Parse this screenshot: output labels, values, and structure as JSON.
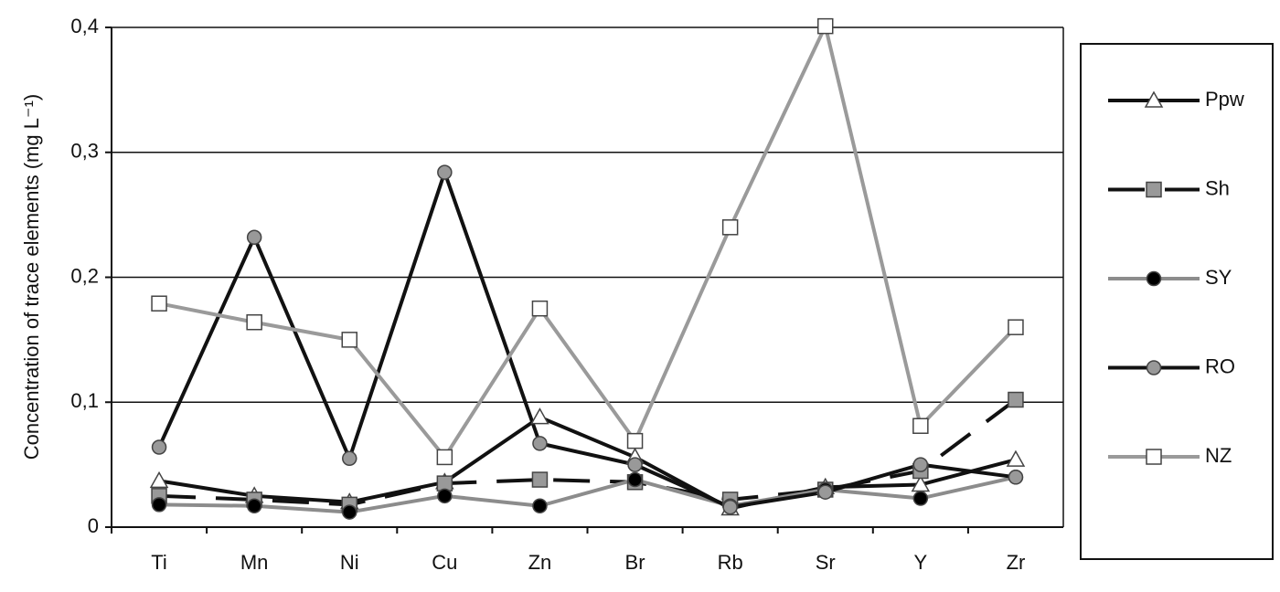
{
  "chart_data": {
    "type": "line",
    "y_label": "Concentration of trace elements (mg L⁻¹)",
    "categories": [
      "Ti",
      "Mn",
      "Ni",
      "Cu",
      "Zn",
      "Br",
      "Rb",
      "Sr",
      "Y",
      "Zr"
    ],
    "ylim": [
      0,
      0.4
    ],
    "yticks": [
      0,
      {
        "value": 0.1,
        "label": "0,1"
      },
      {
        "value": 0.2,
        "label": "0,2"
      },
      {
        "value": 0.3,
        "label": "0,3"
      },
      {
        "value": 0.4,
        "label": "0,4"
      }
    ],
    "grid": true,
    "legend": "right",
    "series": [
      {
        "name": "Ppw",
        "color": "#111111",
        "marker": "triangle",
        "marker_fill": "#ffffff",
        "dashed": false,
        "values": [
          0.037,
          0.025,
          0.02,
          0.036,
          0.088,
          0.056,
          0.015,
          0.032,
          0.034,
          0.054
        ]
      },
      {
        "name": "Sh",
        "color": "#111111",
        "marker": "square",
        "marker_fill": "#999999",
        "dashed": true,
        "values": [
          0.025,
          0.022,
          0.018,
          0.035,
          0.038,
          0.036,
          0.022,
          0.03,
          0.045,
          0.102
        ]
      },
      {
        "name": "SY",
        "color": "#8c8c8c",
        "marker": "circle",
        "marker_fill": "#000000",
        "dashed": false,
        "values": [
          0.018,
          0.017,
          0.012,
          0.025,
          0.017,
          0.038,
          0.017,
          0.03,
          0.023,
          0.04
        ]
      },
      {
        "name": "RO",
        "color": "#111111",
        "marker": "circle",
        "marker_fill": "#999999",
        "dashed": false,
        "values": [
          0.064,
          0.232,
          0.055,
          0.284,
          0.067,
          0.05,
          0.016,
          0.028,
          0.05,
          0.04
        ]
      },
      {
        "name": "NZ",
        "color": "#9a9a9a",
        "marker": "square",
        "marker_fill": "#ffffff",
        "dashed": false,
        "values": [
          0.179,
          0.164,
          0.15,
          0.056,
          0.175,
          0.069,
          0.24,
          0.401,
          0.081,
          0.16
        ]
      }
    ]
  }
}
